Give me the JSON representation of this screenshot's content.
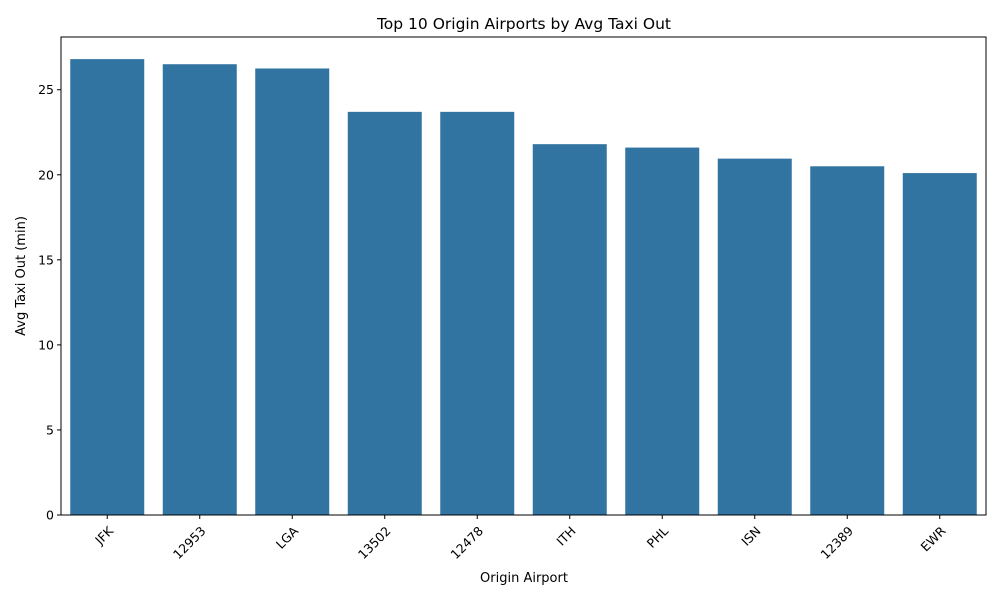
{
  "chart_data": {
    "type": "bar",
    "title": "Top 10 Origin Airports by Avg Taxi Out",
    "xlabel": "Origin Airport",
    "ylabel": "Avg Taxi Out (min)",
    "categories": [
      "JFK",
      "12953",
      "LGA",
      "13502",
      "12478",
      "ITH",
      "PHL",
      "ISN",
      "12389",
      "EWR"
    ],
    "values": [
      26.8,
      26.5,
      26.25,
      23.7,
      23.7,
      21.8,
      21.6,
      20.95,
      20.5,
      20.1
    ],
    "ylim": [
      0,
      28.1
    ],
    "yticks": [
      0,
      5,
      10,
      15,
      20,
      25
    ],
    "bar_color": "#3274a1",
    "grid": false,
    "legend": "none"
  }
}
